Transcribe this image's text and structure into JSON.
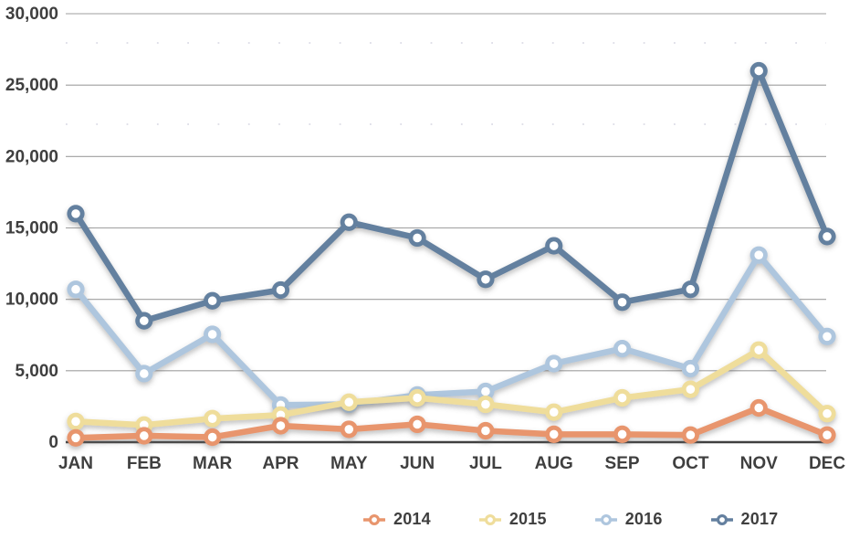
{
  "chart_data": {
    "type": "line",
    "title": "",
    "xlabel": "",
    "ylabel": "",
    "categories": [
      "JAN",
      "FEB",
      "MAR",
      "APR",
      "MAY",
      "JUN",
      "JUL",
      "AUG",
      "SEP",
      "OCT",
      "NOV",
      "DEC"
    ],
    "series": [
      {
        "name": "2014",
        "color": "#E8956D",
        "values": [
          300,
          450,
          350,
          1150,
          900,
          1250,
          800,
          550,
          550,
          500,
          2400,
          500
        ]
      },
      {
        "name": "2015",
        "color": "#EFDD9B",
        "values": [
          1450,
          1200,
          1650,
          1900,
          2800,
          3100,
          2650,
          2100,
          3100,
          3700,
          6450,
          2000
        ]
      },
      {
        "name": "2016",
        "color": "#AEC6DE",
        "values": [
          10700,
          4800,
          7550,
          2600,
          2650,
          3300,
          3550,
          5500,
          6550,
          5150,
          13100,
          7400
        ]
      },
      {
        "name": "2017",
        "color": "#64809F",
        "values": [
          16000,
          8500,
          9900,
          10650,
          15400,
          14300,
          11400,
          13750,
          9800,
          10700,
          26000,
          14400
        ]
      }
    ],
    "ylim": [
      0,
      30000
    ],
    "ytick_interval": 5000,
    "ytick_labels": [
      "0",
      "5,000",
      "10,000",
      "15,000",
      "20,000",
      "25,000",
      "30,000"
    ],
    "grid": true,
    "axis_color": "#404040",
    "gridline_color": "#9f9f9f",
    "minor_dot_color": "#dcdce6",
    "label_color": "#3f3f3f",
    "legend_position": "bottom-right",
    "marker_style": "ring-with-white-center"
  }
}
